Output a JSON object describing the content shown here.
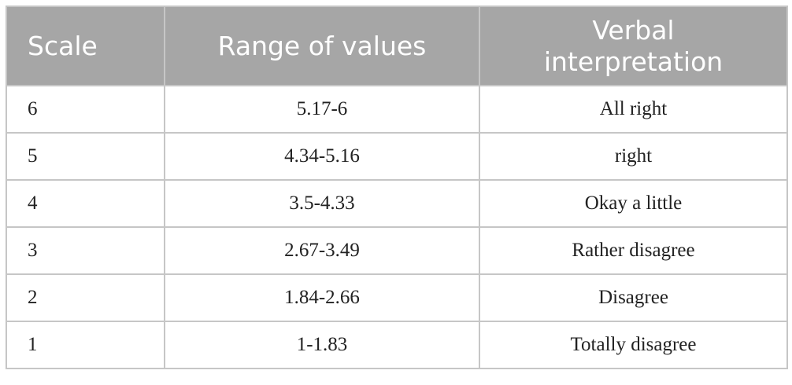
{
  "table": {
    "header": [
      "Scale",
      "Range of values",
      "Verbal interpretation"
    ],
    "rows": [
      [
        "6",
        "5.17-6",
        "All right"
      ],
      [
        "5",
        "4.34-5.16",
        "right"
      ],
      [
        "4",
        "3.5-4.33",
        "Okay a little"
      ],
      [
        "3",
        "2.67-3.49",
        "Rather disagree"
      ],
      [
        "2",
        "1.84-2.66",
        "Disagree"
      ],
      [
        "1",
        "1-1.83",
        "Totally disagree"
      ]
    ]
  }
}
